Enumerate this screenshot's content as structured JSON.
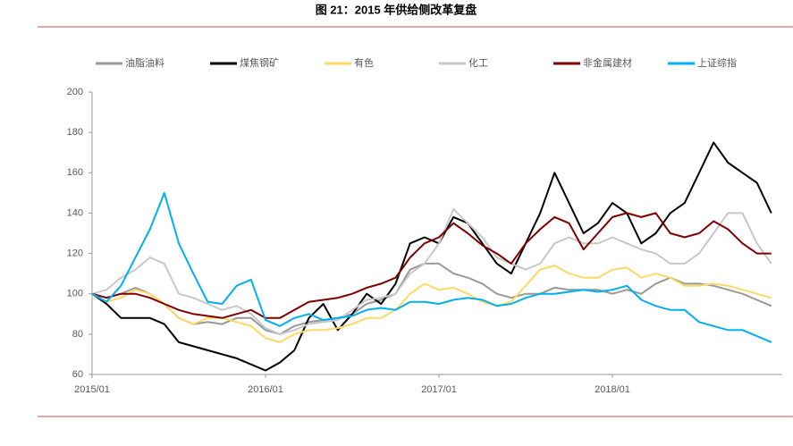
{
  "chart_data": {
    "type": "line",
    "title": "图 21：2015 年供给侧改革复盘",
    "categories": [
      "2015/01",
      null,
      null,
      null,
      null,
      null,
      null,
      null,
      null,
      null,
      null,
      null,
      "2016/01",
      null,
      null,
      null,
      null,
      null,
      null,
      null,
      null,
      null,
      null,
      null,
      "2017/01",
      null,
      null,
      null,
      null,
      null,
      null,
      null,
      null,
      null,
      null,
      null,
      "2018/01",
      null,
      null,
      null,
      null,
      null,
      null,
      null,
      null,
      null,
      null,
      null
    ],
    "ylim": [
      60,
      200
    ],
    "yticks": [
      60,
      80,
      100,
      120,
      140,
      160,
      180,
      200
    ],
    "series": [
      {
        "name": "油脂油料",
        "color": "#999999",
        "values": [
          100,
          98,
          100,
          103,
          100,
          95,
          88,
          85,
          86,
          85,
          88,
          88,
          82,
          80,
          84,
          86,
          87,
          88,
          90,
          95,
          97,
          100,
          112,
          115,
          115,
          110,
          108,
          105,
          100,
          98,
          100,
          100,
          103,
          102,
          102,
          102,
          100,
          102,
          100,
          105,
          108,
          105,
          105,
          104,
          102,
          100,
          97,
          94
        ]
      },
      {
        "name": "煤焦钢矿",
        "color": "#000000",
        "values": [
          100,
          95,
          88,
          88,
          88,
          85,
          76,
          74,
          72,
          70,
          68,
          65,
          62,
          66,
          72,
          88,
          95,
          82,
          90,
          100,
          95,
          105,
          125,
          128,
          125,
          138,
          135,
          125,
          115,
          110,
          125,
          140,
          160,
          145,
          130,
          135,
          145,
          140,
          125,
          130,
          140,
          145,
          160,
          175,
          165,
          160,
          155,
          140
        ]
      },
      {
        "name": "有色",
        "color": "#ffd966",
        "values": [
          100,
          96,
          98,
          102,
          100,
          95,
          88,
          85,
          88,
          88,
          86,
          84,
          78,
          76,
          80,
          82,
          82,
          83,
          85,
          88,
          88,
          92,
          100,
          105,
          102,
          103,
          100,
          96,
          94,
          96,
          104,
          112,
          114,
          110,
          108,
          108,
          112,
          113,
          108,
          110,
          108,
          104,
          104,
          105,
          104,
          102,
          100,
          98
        ]
      },
      {
        "name": "化工",
        "color": "#c8c8c8",
        "values": [
          100,
          102,
          108,
          112,
          118,
          115,
          100,
          98,
          95,
          92,
          94,
          90,
          83,
          80,
          82,
          85,
          86,
          87,
          92,
          97,
          98,
          100,
          110,
          115,
          125,
          142,
          135,
          128,
          118,
          115,
          112,
          115,
          125,
          128,
          125,
          125,
          128,
          125,
          122,
          120,
          115,
          115,
          120,
          130,
          140,
          140,
          125,
          115
        ]
      },
      {
        "name": "非金属建材",
        "color": "#7f0000",
        "values": [
          100,
          98,
          100,
          100,
          98,
          95,
          92,
          90,
          89,
          88,
          90,
          92,
          88,
          88,
          92,
          96,
          97,
          98,
          100,
          103,
          105,
          108,
          118,
          125,
          128,
          135,
          130,
          124,
          120,
          115,
          125,
          132,
          138,
          135,
          122,
          130,
          138,
          140,
          138,
          140,
          130,
          128,
          130,
          136,
          132,
          125,
          120,
          120
        ]
      },
      {
        "name": "上证综指",
        "color": "#00b0f0",
        "values": [
          100,
          96,
          104,
          118,
          132,
          150,
          125,
          110,
          96,
          95,
          104,
          107,
          87,
          84,
          88,
          90,
          87,
          88,
          89,
          92,
          93,
          92,
          96,
          96,
          95,
          97,
          98,
          97,
          94,
          95,
          98,
          100,
          100,
          101,
          102,
          101,
          102,
          104,
          97,
          94,
          92,
          92,
          86,
          84,
          82,
          82,
          79,
          76
        ]
      }
    ]
  }
}
